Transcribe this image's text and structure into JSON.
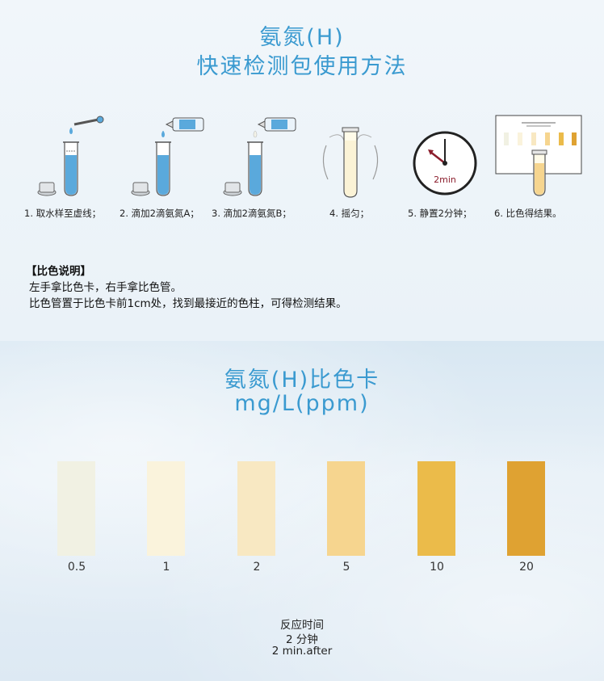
{
  "header": {
    "title_line1": "氨氮(H)",
    "title_line2": "快速检测包使用方法"
  },
  "steps": [
    {
      "label": "1. 取水样至虚线；",
      "icon": "test-tube-dropper-icon"
    },
    {
      "label": "2. 滴加2滴氨氮A；",
      "icon": "reagent-bottle-a-icon"
    },
    {
      "label": "3. 滴加2滴氨氮B；",
      "icon": "reagent-bottle-b-icon"
    },
    {
      "label": "4. 摇匀；",
      "icon": "shake-tube-icon"
    },
    {
      "label": "5. 静置2分钟；",
      "icon": "clock-icon",
      "clock_text": "2min"
    },
    {
      "label": "6. 比色得结果。",
      "icon": "color-card-compare-icon"
    }
  ],
  "notes": {
    "heading": "【比色说明】",
    "line1": "左手拿比色卡，右手拿比色管。",
    "line2": "比色管置于比色卡前1cm处，找到最接近的色柱，可得检测结果。"
  },
  "color_card": {
    "title_line1": "氨氮(H)比色卡",
    "title_line2": "mg/L(ppm)",
    "swatches": [
      {
        "label": "0.5",
        "color": "#f1f1e3"
      },
      {
        "label": "1",
        "color": "#faf3dc"
      },
      {
        "label": "2",
        "color": "#f8e8c2"
      },
      {
        "label": "5",
        "color": "#f6d58f"
      },
      {
        "label": "10",
        "color": "#ebbb4a"
      },
      {
        "label": "20",
        "color": "#dfa232"
      }
    ]
  },
  "reaction": {
    "line1": "反应时间",
    "line2": "2 分钟",
    "line3": "2 min.after"
  },
  "colors": {
    "title": "#3a9ad0",
    "water": "#5aa9dc",
    "clock_hand": "#8b1d2c"
  }
}
